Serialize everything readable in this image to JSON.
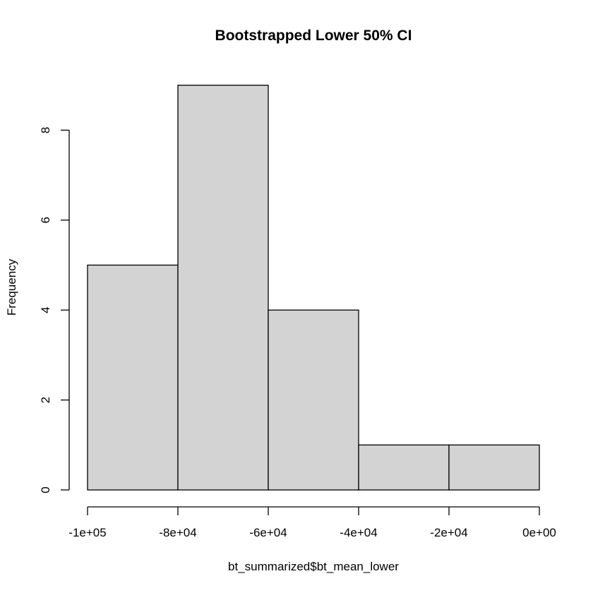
{
  "chart_data": {
    "type": "bar",
    "title": "Bootstrapped Lower 50% CI",
    "xlabel": "bt_summarized$bt_mean_lower",
    "ylabel": "Frequency",
    "bins": [
      {
        "start": -100000,
        "end": -80000,
        "count": 5
      },
      {
        "start": -80000,
        "end": -60000,
        "count": 9
      },
      {
        "start": -60000,
        "end": -40000,
        "count": 4
      },
      {
        "start": -40000,
        "end": -20000,
        "count": 1
      },
      {
        "start": -20000,
        "end": 0,
        "count": 1
      }
    ],
    "xlim": [
      -100000,
      0
    ],
    "ylim": [
      0,
      9
    ],
    "x_ticks": [
      {
        "value": -100000,
        "label": "-1e+05"
      },
      {
        "value": -80000,
        "label": "-8e+04"
      },
      {
        "value": -60000,
        "label": "-6e+04"
      },
      {
        "value": -40000,
        "label": "-4e+04"
      },
      {
        "value": -20000,
        "label": "-2e+04"
      },
      {
        "value": 0,
        "label": "0e+00"
      }
    ],
    "y_ticks": [
      {
        "value": 0,
        "label": "0"
      },
      {
        "value": 2,
        "label": "2"
      },
      {
        "value": 4,
        "label": "4"
      },
      {
        "value": 6,
        "label": "6"
      },
      {
        "value": 8,
        "label": "8"
      }
    ],
    "bar_color": "#d3d3d3",
    "grid": false,
    "legend": "none"
  }
}
